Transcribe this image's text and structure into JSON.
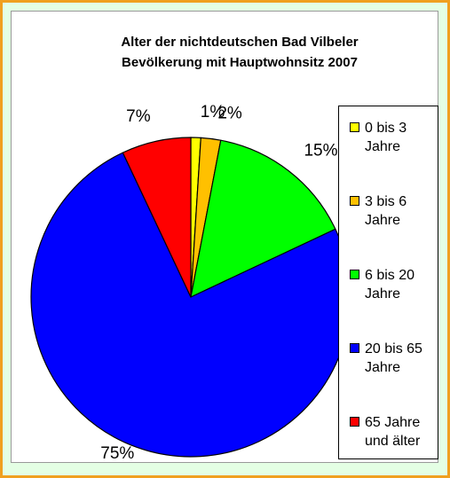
{
  "chart_data": {
    "type": "pie",
    "title": "Alter der nichtdeutschen Bad Vilbeler Bevölkerung mit Hauptwohnsitz 2007",
    "categories": [
      "0 bis 3 Jahre",
      "3 bis 6 Jahre",
      "6 bis 20 Jahre",
      "20 bis 65 Jahre",
      "65 Jahre und älter"
    ],
    "values": [
      1,
      2,
      15,
      75,
      7
    ],
    "value_labels": [
      "1%",
      "2%",
      "15%",
      "75%",
      "7%"
    ],
    "colors": [
      "#ffff00",
      "#ffc000",
      "#00ff00",
      "#0000ff",
      "#ff0000"
    ],
    "legend": "right"
  }
}
